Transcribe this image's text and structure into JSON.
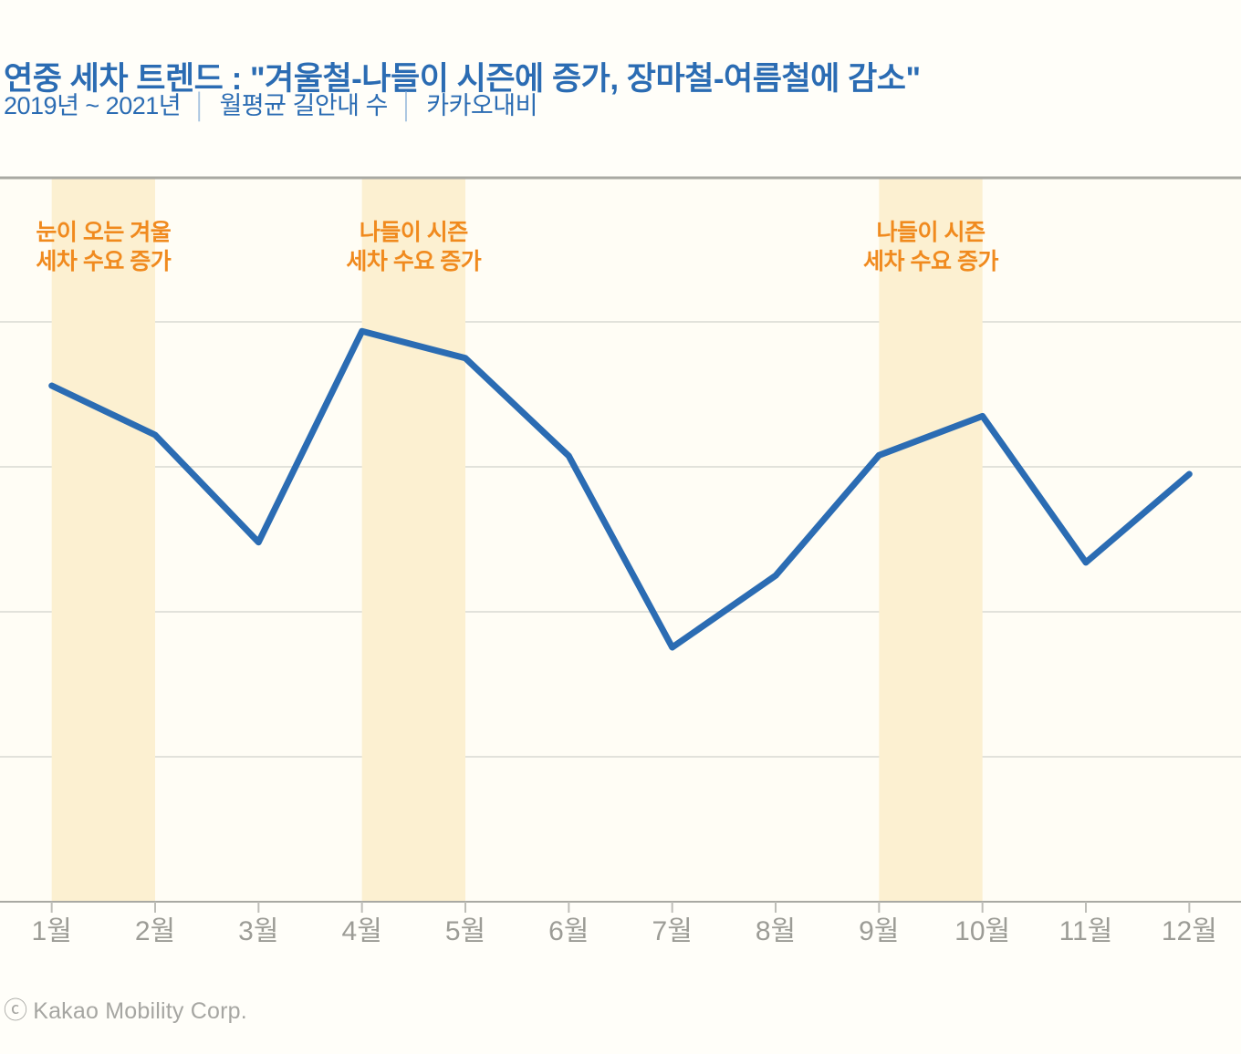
{
  "header": {
    "title": "연중 세차 트렌드 : \"겨울철-나들이 시즌에 증가, 장마철-여름철에 감소\"",
    "subtitle": {
      "period": "2019년 ~ 2021년",
      "metric": "월평균 길안내 수",
      "source": "카카오내비",
      "separator": "│"
    }
  },
  "chart_data": {
    "type": "line",
    "title": "연중 세차 트렌드 : \"겨울철-나들이 시즌에 증가, 장마철-여름철에 감소\"",
    "x": [
      "1월",
      "2월",
      "3월",
      "4월",
      "5월",
      "6월",
      "7월",
      "8월",
      "9월",
      "10월",
      "11월",
      "12월"
    ],
    "series": [
      {
        "name": "월평균 길안내 수 (상대값, 축 라벨 비표시)",
        "values": [
          71.2,
          64.4,
          49.6,
          78.7,
          75.0,
          61.5,
          35.1,
          45.0,
          61.6,
          67.0,
          46.8,
          59.0
        ]
      }
    ],
    "ylim": [
      0,
      100
    ],
    "gridline_values": [
      20,
      40,
      60,
      80
    ],
    "y_axis_labels_visible": false,
    "legend": "none",
    "highlight_bands": [
      {
        "from": "1월",
        "to": "2월",
        "label": "눈이 오는 겨울\n세차 수요 증가"
      },
      {
        "from": "4월",
        "to": "5월",
        "label": "나들이 시즌\n세차 수요 증가"
      },
      {
        "from": "9월",
        "to": "10월",
        "label": "나들이 시즌\n세차 수요 증가"
      }
    ]
  },
  "colors": {
    "page_bg": "#FFFEF9",
    "chart_bg": "#FFFDF5",
    "band_yellow": "#FCF0D1",
    "title_blue": "#2B6CB3",
    "line_blue": "#2B6CB3",
    "annotation_orange": "#F08A1E",
    "grid_gray": "#E2E2DB",
    "axis_gray": "#A9A9A3",
    "tick_gray": "#BDBDB7",
    "tick_label_gray": "#9C9C96",
    "footer_gray": "#A6A6A2",
    "subtitle_separator": "#A9C5E0"
  },
  "footer": {
    "symbol": "ⓒ",
    "text": "Kakao Mobility Corp."
  }
}
